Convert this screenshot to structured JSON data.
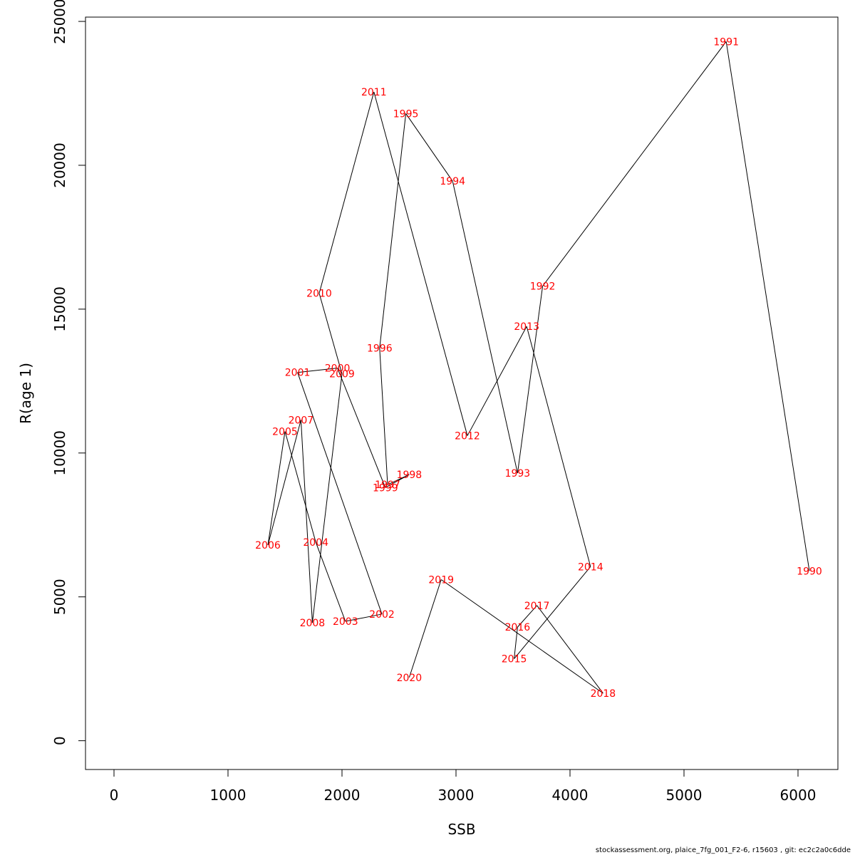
{
  "chart_data": {
    "type": "line",
    "xlabel": "SSB",
    "ylabel": "R(age 1)",
    "xlim": [
      -250,
      6350
    ],
    "ylim": [
      -1000,
      25150
    ],
    "x_ticks": [
      0,
      1000,
      2000,
      3000,
      4000,
      5000,
      6000
    ],
    "y_ticks": [
      0,
      5000,
      10000,
      15000,
      20000,
      25000
    ],
    "grid": false,
    "line_color": "#000000",
    "label_color": "#ff0000",
    "points": [
      {
        "label": "1990",
        "x": 6100,
        "y": 5900
      },
      {
        "label": "1991",
        "x": 5370,
        "y": 24300
      },
      {
        "label": "1992",
        "x": 3760,
        "y": 15800
      },
      {
        "label": "1993",
        "x": 3540,
        "y": 9300
      },
      {
        "label": "1994",
        "x": 2970,
        "y": 19450
      },
      {
        "label": "1995",
        "x": 2560,
        "y": 21800
      },
      {
        "label": "1996",
        "x": 2330,
        "y": 13650
      },
      {
        "label": "1997",
        "x": 2400,
        "y": 8900
      },
      {
        "label": "1998",
        "x": 2590,
        "y": 9250
      },
      {
        "label": "1999",
        "x": 2380,
        "y": 8800
      },
      {
        "label": "2000",
        "x": 1960,
        "y": 12950
      },
      {
        "label": "2001",
        "x": 1610,
        "y": 12800
      },
      {
        "label": "2002",
        "x": 2350,
        "y": 4400
      },
      {
        "label": "2003",
        "x": 2030,
        "y": 4150
      },
      {
        "label": "2004",
        "x": 1770,
        "y": 6900
      },
      {
        "label": "2005",
        "x": 1500,
        "y": 10750
      },
      {
        "label": "2006",
        "x": 1350,
        "y": 6800
      },
      {
        "label": "2007",
        "x": 1640,
        "y": 11150
      },
      {
        "label": "2008",
        "x": 1740,
        "y": 4100
      },
      {
        "label": "2009",
        "x": 2000,
        "y": 12750
      },
      {
        "label": "2010",
        "x": 1800,
        "y": 15550
      },
      {
        "label": "2011",
        "x": 2280,
        "y": 22550
      },
      {
        "label": "2012",
        "x": 3100,
        "y": 10600
      },
      {
        "label": "2013",
        "x": 3620,
        "y": 14400
      },
      {
        "label": "2014",
        "x": 4180,
        "y": 6050
      },
      {
        "label": "2015",
        "x": 3510,
        "y": 2850
      },
      {
        "label": "2016",
        "x": 3540,
        "y": 3950
      },
      {
        "label": "2017",
        "x": 3710,
        "y": 4700
      },
      {
        "label": "2018",
        "x": 4290,
        "y": 1650
      },
      {
        "label": "2019",
        "x": 2870,
        "y": 5600
      },
      {
        "label": "2020",
        "x": 2590,
        "y": 2200
      }
    ]
  },
  "footer": {
    "text": "stockassessment.org, plaice_7fg_001_F2-6, r15603 , git: ec2c2a0c6dde"
  }
}
